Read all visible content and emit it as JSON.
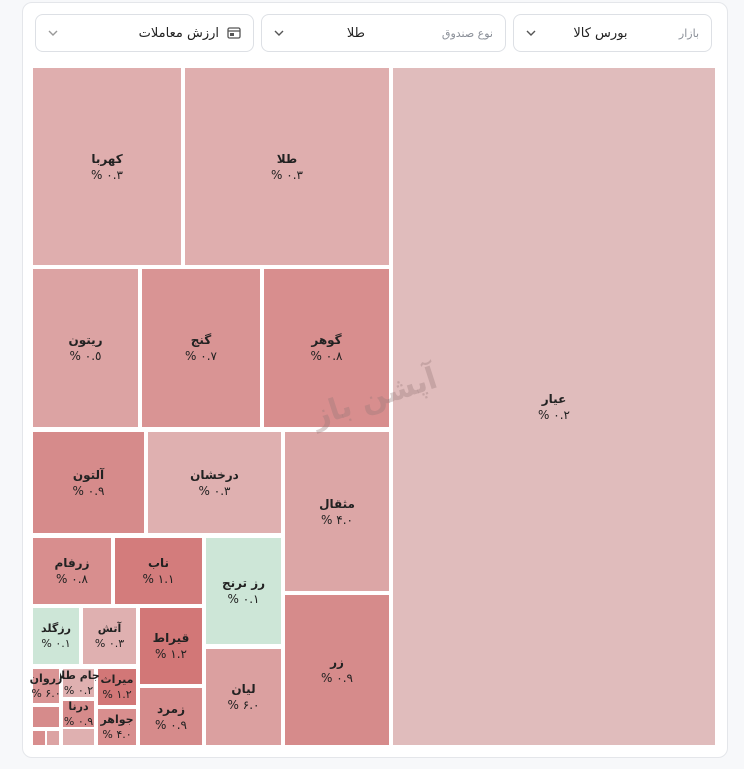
{
  "filters": [
    {
      "label": "بازار",
      "value": "بورس کالا"
    },
    {
      "label": "نوع صندوق",
      "value": "طلا"
    },
    {
      "value": "ارزش معاملات"
    }
  ],
  "watermark": "آپشن باز",
  "treemap": {
    "tiles": [
      {
        "name": "عیار",
        "change": "٠.٢ %"
      },
      {
        "name": "طلا",
        "change": "٠.٣ %"
      },
      {
        "name": "کهربا",
        "change": "٠.٣ %"
      },
      {
        "name": "گوهر",
        "change": "٠.٨ %"
      },
      {
        "name": "گنج",
        "change": "٠.٧ %"
      },
      {
        "name": "ریتون",
        "change": "٠.٥ %"
      },
      {
        "name": "مثقال",
        "change": "٠.۴ %"
      },
      {
        "name": "درخشان",
        "change": "٠.٣ %"
      },
      {
        "name": "آلتون",
        "change": "٠.٩ %"
      },
      {
        "name": "زر",
        "change": "٠.٩ %"
      },
      {
        "name": "رز ترنج",
        "change": "٠.١ %"
      },
      {
        "name": "ناب",
        "change": "١.١ %"
      },
      {
        "name": "زرفام",
        "change": "٠.٨ %"
      },
      {
        "name": "لیان",
        "change": "٠.۶ %"
      },
      {
        "name": "قیراط",
        "change": "١.٢ %"
      },
      {
        "name": "زمرد",
        "change": "٠.٩ %"
      },
      {
        "name": "آتش",
        "change": "٠.٣ %"
      },
      {
        "name": "رزگلد",
        "change": "٠.١ %"
      },
      {
        "name": "میراث",
        "change": "١.٢ %"
      },
      {
        "name": "جواهر",
        "change": "٠.۴ %"
      },
      {
        "name": "جام طلا",
        "change": "٠.٢ %"
      },
      {
        "name": "زروان",
        "change": "٠.۶ %"
      },
      {
        "name": "درنا",
        "change": "٠.٩ %"
      }
    ]
  }
}
